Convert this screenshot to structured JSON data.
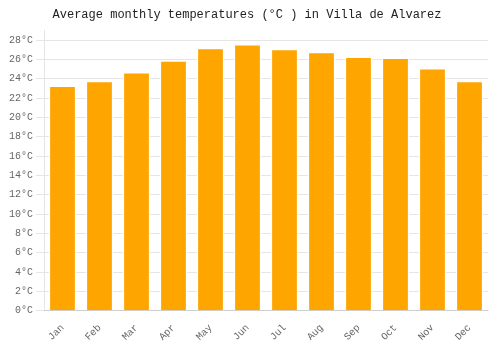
{
  "chart_data": {
    "type": "bar",
    "title": "Average monthly temperatures (°C ) in Villa de Alvarez",
    "categories": [
      "Jan",
      "Feb",
      "Mar",
      "Apr",
      "May",
      "Jun",
      "Jul",
      "Aug",
      "Sep",
      "Oct",
      "Nov",
      "Dec"
    ],
    "values": [
      23.3,
      23.8,
      24.7,
      25.9,
      27.2,
      27.6,
      27.1,
      26.8,
      26.3,
      26.2,
      25.1,
      23.8
    ],
    "color": "#FFA500",
    "ylim": [
      0,
      29
    ],
    "yticks": [
      {
        "value": 0,
        "label": "0°C"
      },
      {
        "value": 2,
        "label": "2°C"
      },
      {
        "value": 4,
        "label": "4°C"
      },
      {
        "value": 6,
        "label": "6°C"
      },
      {
        "value": 8,
        "label": "8°C"
      },
      {
        "value": 10,
        "label": "10°C"
      },
      {
        "value": 12,
        "label": "12°C"
      },
      {
        "value": 14,
        "label": "14°C"
      },
      {
        "value": 16,
        "label": "16°C"
      },
      {
        "value": 18,
        "label": "18°C"
      },
      {
        "value": 20,
        "label": "20°C"
      },
      {
        "value": 22,
        "label": "22°C"
      },
      {
        "value": 24,
        "label": "24°C"
      },
      {
        "value": 26,
        "label": "26°C"
      },
      {
        "value": 28,
        "label": "28°C"
      }
    ],
    "grid": true
  }
}
